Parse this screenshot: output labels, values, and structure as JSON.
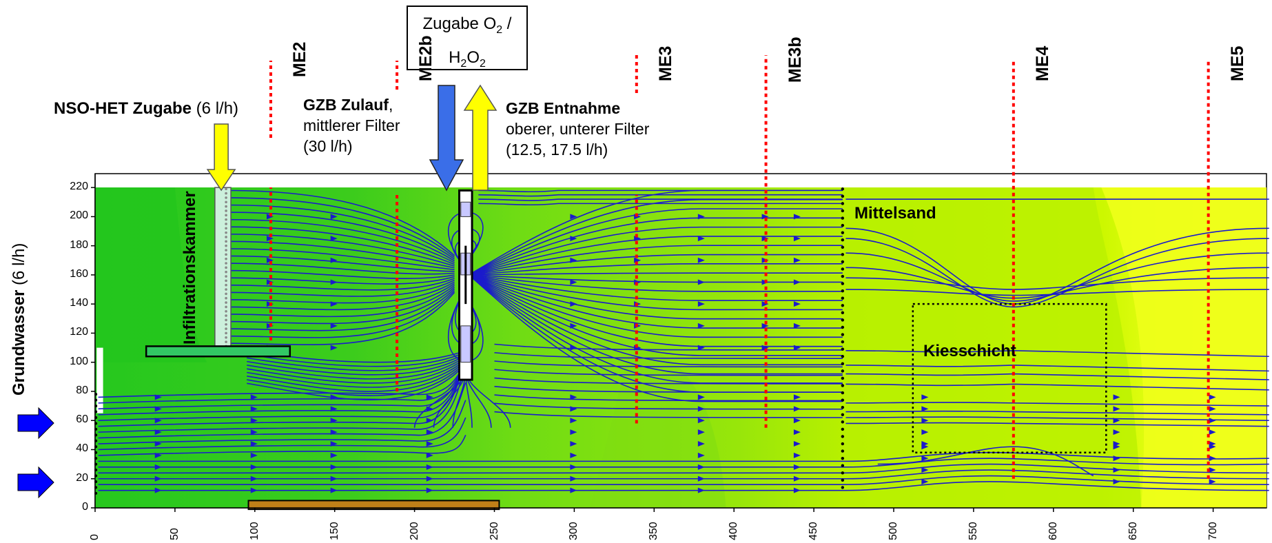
{
  "labels": {
    "o2_box_line1": "Zugabe O",
    "o2_box_sub1": "2",
    "o2_box_tail1": " /",
    "o2_box_line2a": "H",
    "o2_box_sub2a": "2",
    "o2_box_line2b": "O",
    "o2_box_sub2b": "2",
    "nso_bold": "NSO-HET Zugabe",
    "nso_rate": " (6 l/h)",
    "gzb_zulauf_bold": "GZB Zulauf",
    "gzb_zulauf_comma": ",",
    "gzb_zulauf_line2": "mittlerer Filter",
    "gzb_zulauf_line3": "(30 l/h)",
    "gzb_entnahme_bold": "GZB Entnahme",
    "gzb_entnahme_line2": "oberer, unterer Filter",
    "gzb_entnahme_line3": "(12.5, 17.5 l/h)",
    "mittelsand": "Mittelsand",
    "kiesschicht": "Kiesschicht",
    "infiltrationskammer": "Infiltrationskammer",
    "grundwasser_bold": "Grundwasser",
    "grundwasser_rate": " (6 l/h)"
  },
  "probes": [
    {
      "name": "ME2",
      "x": 110
    },
    {
      "name": "ME2b",
      "x": 189
    },
    {
      "name": "ME3",
      "x": 339
    },
    {
      "name": "ME3b",
      "x": 420
    },
    {
      "name": "ME4",
      "x": 575
    },
    {
      "name": "ME5",
      "x": 697
    }
  ],
  "axes": {
    "y_ticks": [
      0,
      20,
      40,
      60,
      80,
      100,
      120,
      140,
      160,
      180,
      200,
      220
    ],
    "x_ticks": [
      0,
      50,
      100,
      150,
      200,
      250,
      300,
      350,
      400,
      450,
      500,
      550,
      600,
      650,
      700
    ],
    "x_range": [
      0,
      735
    ],
    "y_range": [
      0,
      220
    ]
  },
  "colors": {
    "streamline": "#1a1acc",
    "probe_line": "#ff0000",
    "green_dark": "#22c81e",
    "green_mid": "#5ad81a",
    "lime": "#b8f000",
    "yellow": "#f0ff20",
    "arrow_yellow": "#ffff00",
    "arrow_blue": "#3a6ee8",
    "inflow_blue": "#0000ff",
    "basin_brown": "#c08018"
  }
}
